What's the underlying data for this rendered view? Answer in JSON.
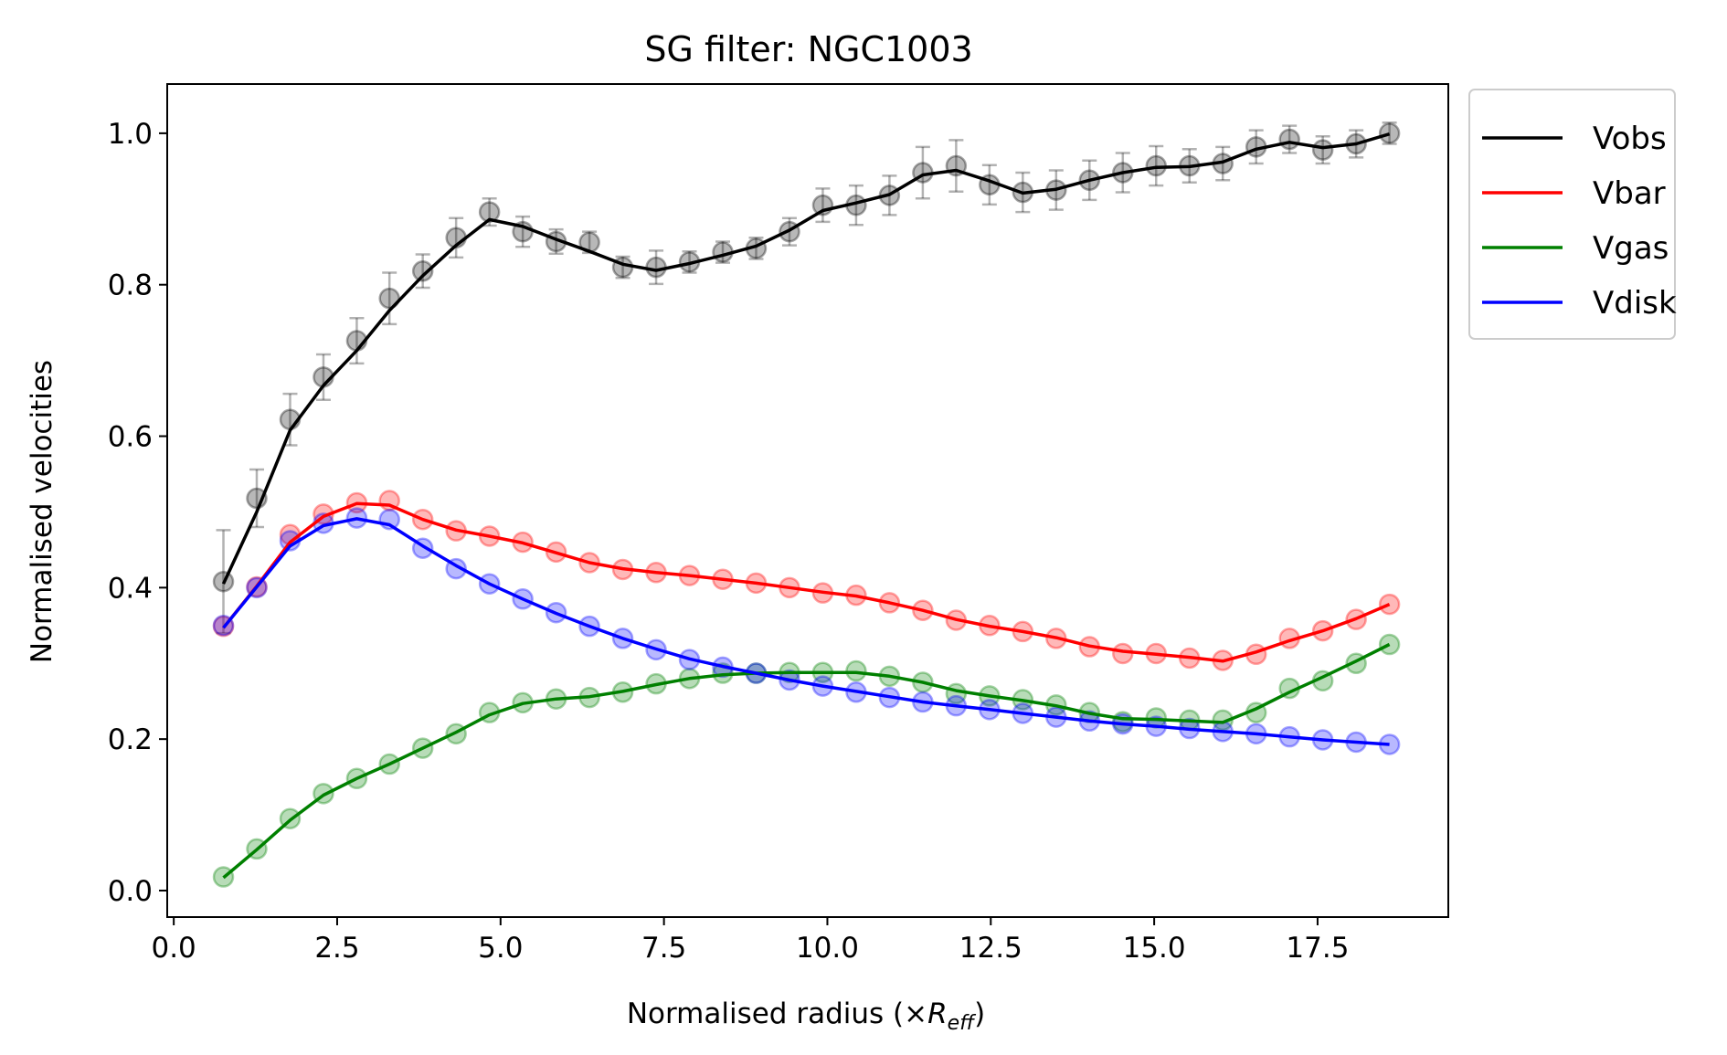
{
  "chart_data": {
    "type": "line",
    "title": "SG filter: NGC1003",
    "xlabel": "Normalised radius (×",
    "xlabel_math": "R",
    "xlabel_sub": "eff",
    "xlabel_tail": ")",
    "ylabel": "Normalised velocities",
    "xlim": [
      -0.1,
      19.5
    ],
    "ylim": [
      -0.035,
      1.065
    ],
    "xticks": [
      0.0,
      2.5,
      5.0,
      7.5,
      10.0,
      12.5,
      15.0,
      17.5
    ],
    "xtick_labels": [
      "0.0",
      "2.5",
      "5.0",
      "7.5",
      "10.0",
      "12.5",
      "15.0",
      "17.5"
    ],
    "yticks": [
      0.0,
      0.2,
      0.4,
      0.6,
      0.8,
      1.0
    ],
    "ytick_labels": [
      "0.0",
      "0.2",
      "0.4",
      "0.6",
      "0.8",
      "1.0"
    ],
    "grid": false,
    "legend_position": "outside-right-top",
    "x": [
      0.76,
      1.27,
      1.78,
      2.29,
      2.8,
      3.3,
      3.81,
      4.32,
      4.83,
      5.34,
      5.85,
      6.36,
      6.87,
      7.38,
      7.89,
      8.4,
      8.91,
      9.42,
      9.93,
      10.44,
      10.95,
      11.46,
      11.97,
      12.48,
      12.99,
      13.5,
      14.01,
      14.52,
      15.03,
      15.54,
      16.05,
      16.56,
      17.07,
      17.58,
      18.09,
      18.6
    ],
    "series": [
      {
        "name": "Vobs",
        "color": "#000000",
        "points": [
          0.408,
          0.518,
          0.622,
          0.678,
          0.726,
          0.782,
          0.818,
          0.862,
          0.896,
          0.87,
          0.857,
          0.856,
          0.823,
          0.823,
          0.83,
          0.843,
          0.848,
          0.87,
          0.905,
          0.905,
          0.918,
          0.948,
          0.957,
          0.932,
          0.922,
          0.925,
          0.938,
          0.948,
          0.957,
          0.957,
          0.96,
          0.982,
          0.992,
          0.978,
          0.986,
          1.0
        ],
        "errors": [
          0.068,
          0.038,
          0.034,
          0.03,
          0.03,
          0.034,
          0.022,
          0.026,
          0.018,
          0.02,
          0.016,
          0.014,
          0.014,
          0.022,
          0.014,
          0.014,
          0.014,
          0.018,
          0.022,
          0.026,
          0.026,
          0.034,
          0.034,
          0.026,
          0.026,
          0.026,
          0.026,
          0.026,
          0.026,
          0.022,
          0.022,
          0.022,
          0.018,
          0.018,
          0.018,
          0.014
        ],
        "line": [
          0.405,
          0.5,
          0.608,
          0.667,
          0.713,
          0.766,
          0.812,
          0.852,
          0.886,
          0.877,
          0.86,
          0.844,
          0.827,
          0.819,
          0.828,
          0.839,
          0.851,
          0.872,
          0.898,
          0.908,
          0.919,
          0.945,
          0.951,
          0.937,
          0.921,
          0.926,
          0.938,
          0.948,
          0.955,
          0.956,
          0.962,
          0.979,
          0.988,
          0.981,
          0.986,
          0.999
        ]
      },
      {
        "name": "Vbar",
        "color": "#ff0000",
        "points": [
          0.349,
          0.401,
          0.47,
          0.497,
          0.512,
          0.515,
          0.49,
          0.475,
          0.468,
          0.46,
          0.447,
          0.433,
          0.424,
          0.42,
          0.416,
          0.411,
          0.406,
          0.4,
          0.393,
          0.39,
          0.38,
          0.37,
          0.357,
          0.35,
          0.342,
          0.333,
          0.322,
          0.313,
          0.313,
          0.307,
          0.304,
          0.312,
          0.333,
          0.343,
          0.358,
          0.378
        ],
        "line": [
          0.347,
          0.402,
          0.46,
          0.494,
          0.511,
          0.509,
          0.49,
          0.476,
          0.468,
          0.459,
          0.446,
          0.433,
          0.425,
          0.42,
          0.416,
          0.411,
          0.406,
          0.4,
          0.394,
          0.389,
          0.38,
          0.37,
          0.358,
          0.349,
          0.342,
          0.334,
          0.323,
          0.316,
          0.312,
          0.308,
          0.303,
          0.315,
          0.33,
          0.343,
          0.359,
          0.378
        ]
      },
      {
        "name": "Vgas",
        "color": "#008000",
        "points": [
          0.018,
          0.055,
          0.095,
          0.128,
          0.148,
          0.167,
          0.188,
          0.207,
          0.235,
          0.248,
          0.253,
          0.255,
          0.262,
          0.273,
          0.28,
          0.287,
          0.287,
          0.288,
          0.288,
          0.29,
          0.283,
          0.275,
          0.26,
          0.257,
          0.252,
          0.245,
          0.235,
          0.223,
          0.228,
          0.225,
          0.225,
          0.235,
          0.267,
          0.277,
          0.3,
          0.325
        ],
        "line": [
          0.017,
          0.054,
          0.093,
          0.126,
          0.148,
          0.167,
          0.188,
          0.209,
          0.232,
          0.247,
          0.253,
          0.256,
          0.263,
          0.272,
          0.28,
          0.285,
          0.287,
          0.288,
          0.288,
          0.288,
          0.283,
          0.275,
          0.264,
          0.257,
          0.251,
          0.244,
          0.234,
          0.227,
          0.226,
          0.224,
          0.222,
          0.24,
          0.262,
          0.282,
          0.303,
          0.325
        ]
      },
      {
        "name": "Vdisk",
        "color": "#0000ff",
        "points": [
          0.35,
          0.4,
          0.462,
          0.485,
          0.492,
          0.49,
          0.452,
          0.425,
          0.405,
          0.385,
          0.367,
          0.349,
          0.333,
          0.318,
          0.305,
          0.295,
          0.287,
          0.278,
          0.27,
          0.262,
          0.255,
          0.249,
          0.244,
          0.239,
          0.234,
          0.229,
          0.224,
          0.22,
          0.217,
          0.214,
          0.21,
          0.207,
          0.203,
          0.199,
          0.196,
          0.193
        ],
        "line": [
          0.347,
          0.401,
          0.455,
          0.482,
          0.491,
          0.483,
          0.455,
          0.429,
          0.405,
          0.385,
          0.366,
          0.349,
          0.333,
          0.319,
          0.306,
          0.296,
          0.287,
          0.278,
          0.27,
          0.263,
          0.256,
          0.249,
          0.244,
          0.239,
          0.234,
          0.229,
          0.224,
          0.22,
          0.217,
          0.213,
          0.21,
          0.207,
          0.203,
          0.199,
          0.196,
          0.193
        ]
      }
    ]
  }
}
